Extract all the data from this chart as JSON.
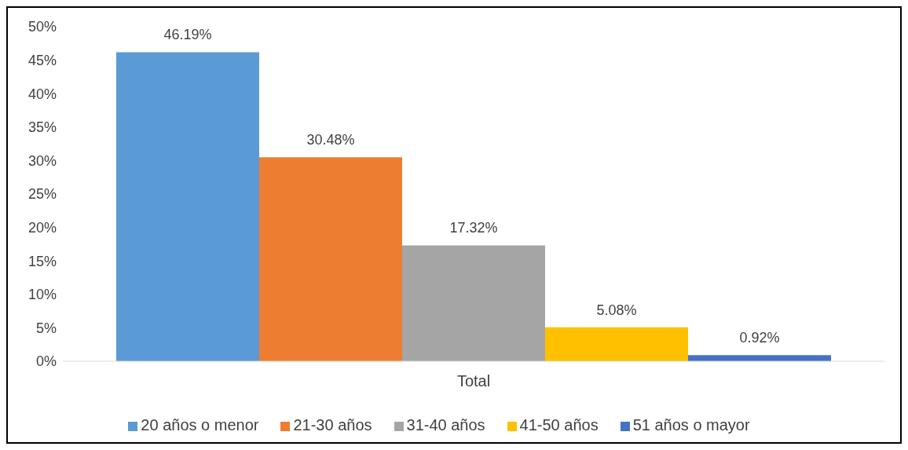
{
  "chart_data": {
    "type": "bar",
    "categories": [
      "Total"
    ],
    "series": [
      {
        "name": "20 años o menor",
        "color": "#5b9bd5",
        "values": [
          46.19
        ],
        "value_labels": [
          "46.19%"
        ]
      },
      {
        "name": "21-30 años",
        "color": "#ed7d31",
        "values": [
          30.48
        ],
        "value_labels": [
          "30.48%"
        ]
      },
      {
        "name": "31-40 años",
        "color": "#a5a5a5",
        "values": [
          17.32
        ],
        "value_labels": [
          "17.32%"
        ]
      },
      {
        "name": "41-50 años",
        "color": "#ffc000",
        "values": [
          5.08
        ],
        "value_labels": [
          "5.08%"
        ]
      },
      {
        "name": "51 años o mayor",
        "color": "#4472c4",
        "values": [
          0.92
        ],
        "value_labels": [
          "0.92%"
        ]
      }
    ],
    "ylim": [
      0,
      50
    ],
    "yticks": [
      {
        "value": 0,
        "label": "0%"
      },
      {
        "value": 5,
        "label": "5%"
      },
      {
        "value": 10,
        "label": "10%"
      },
      {
        "value": 15,
        "label": "15%"
      },
      {
        "value": 20,
        "label": "20%"
      },
      {
        "value": 25,
        "label": "25%"
      },
      {
        "value": 30,
        "label": "30%"
      },
      {
        "value": 35,
        "label": "35%"
      },
      {
        "value": 40,
        "label": "40%"
      },
      {
        "value": 45,
        "label": "45%"
      },
      {
        "value": 50,
        "label": "50%"
      }
    ],
    "grid": false,
    "legend": "bottom"
  }
}
